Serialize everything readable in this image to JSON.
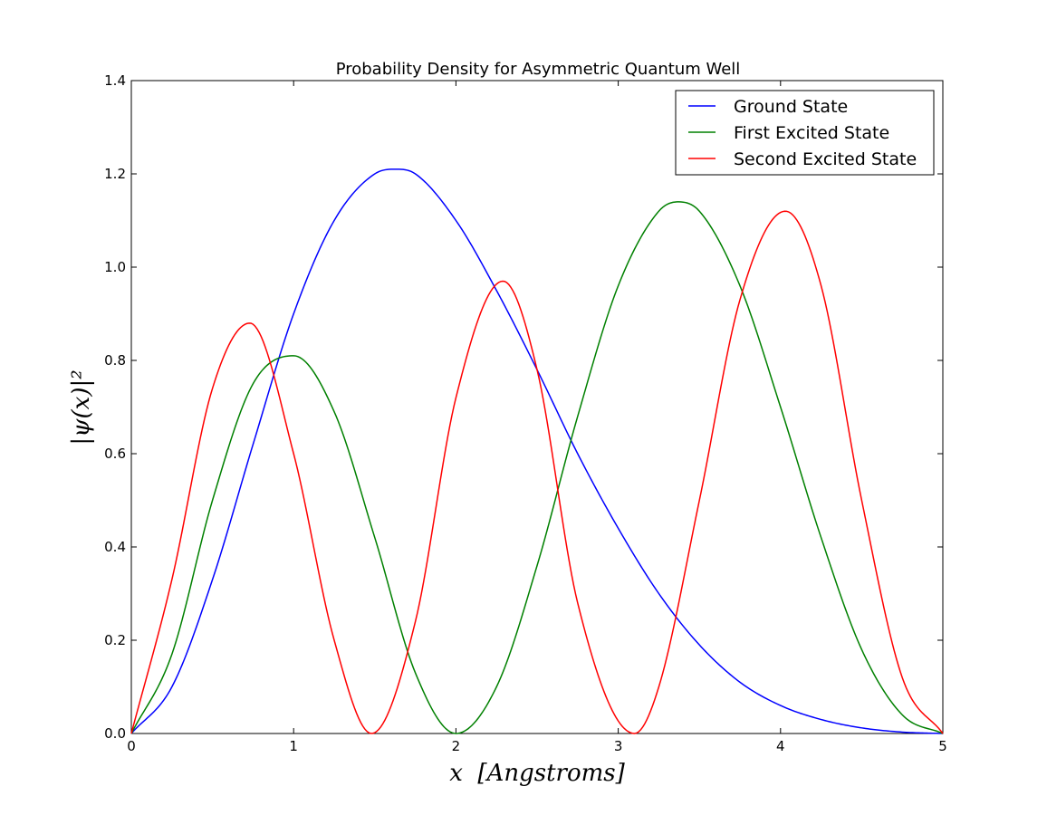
{
  "chart_data": {
    "type": "line",
    "title": "Probability Density for Asymmetric Quantum Well",
    "xlabel": "x  [Angstroms]",
    "ylabel": "|ψ(x)|²",
    "xlim": [
      0,
      5
    ],
    "ylim": [
      0,
      1.4
    ],
    "xticks": [
      "0",
      "1",
      "2",
      "3",
      "4",
      "5"
    ],
    "yticks": [
      "0.0",
      "0.2",
      "0.4",
      "0.6",
      "0.8",
      "1.0",
      "1.2",
      "1.4"
    ],
    "grid": false,
    "legend_position": "top-right",
    "series": [
      {
        "name": "Ground State",
        "color": "#0000ff",
        "x": [
          0,
          0.25,
          0.5,
          0.75,
          1.0,
          1.25,
          1.5,
          1.63,
          1.75,
          2.0,
          2.25,
          2.5,
          2.75,
          3.0,
          3.25,
          3.5,
          3.75,
          4.0,
          4.25,
          4.5,
          4.75,
          5.0
        ],
        "y": [
          0,
          0.1,
          0.33,
          0.62,
          0.9,
          1.1,
          1.2,
          1.21,
          1.2,
          1.1,
          0.95,
          0.78,
          0.6,
          0.44,
          0.3,
          0.19,
          0.11,
          0.06,
          0.03,
          0.012,
          0.003,
          0
        ]
      },
      {
        "name": "First Excited State",
        "color": "#008000",
        "x": [
          0,
          0.25,
          0.5,
          0.75,
          1.0,
          1.25,
          1.5,
          1.75,
          2.0,
          2.25,
          2.5,
          2.75,
          3.0,
          3.25,
          3.37,
          3.5,
          3.75,
          4.0,
          4.25,
          4.5,
          4.75,
          5.0
        ],
        "y": [
          0,
          0.17,
          0.5,
          0.75,
          0.81,
          0.69,
          0.42,
          0.13,
          0,
          0.1,
          0.36,
          0.68,
          0.96,
          1.12,
          1.14,
          1.12,
          0.96,
          0.7,
          0.42,
          0.18,
          0.04,
          0
        ]
      },
      {
        "name": "Second Excited State",
        "color": "#ff0000",
        "x": [
          0,
          0.25,
          0.5,
          0.73,
          1.0,
          1.25,
          1.48,
          1.75,
          2.0,
          2.29,
          2.5,
          2.75,
          3.1,
          3.25,
          3.5,
          3.75,
          4.03,
          4.25,
          4.5,
          4.75,
          5.0
        ],
        "y": [
          0,
          0.33,
          0.74,
          0.88,
          0.6,
          0.2,
          0,
          0.24,
          0.72,
          0.97,
          0.78,
          0.28,
          0,
          0.1,
          0.5,
          0.93,
          1.12,
          0.96,
          0.5,
          0.12,
          0
        ]
      }
    ]
  }
}
